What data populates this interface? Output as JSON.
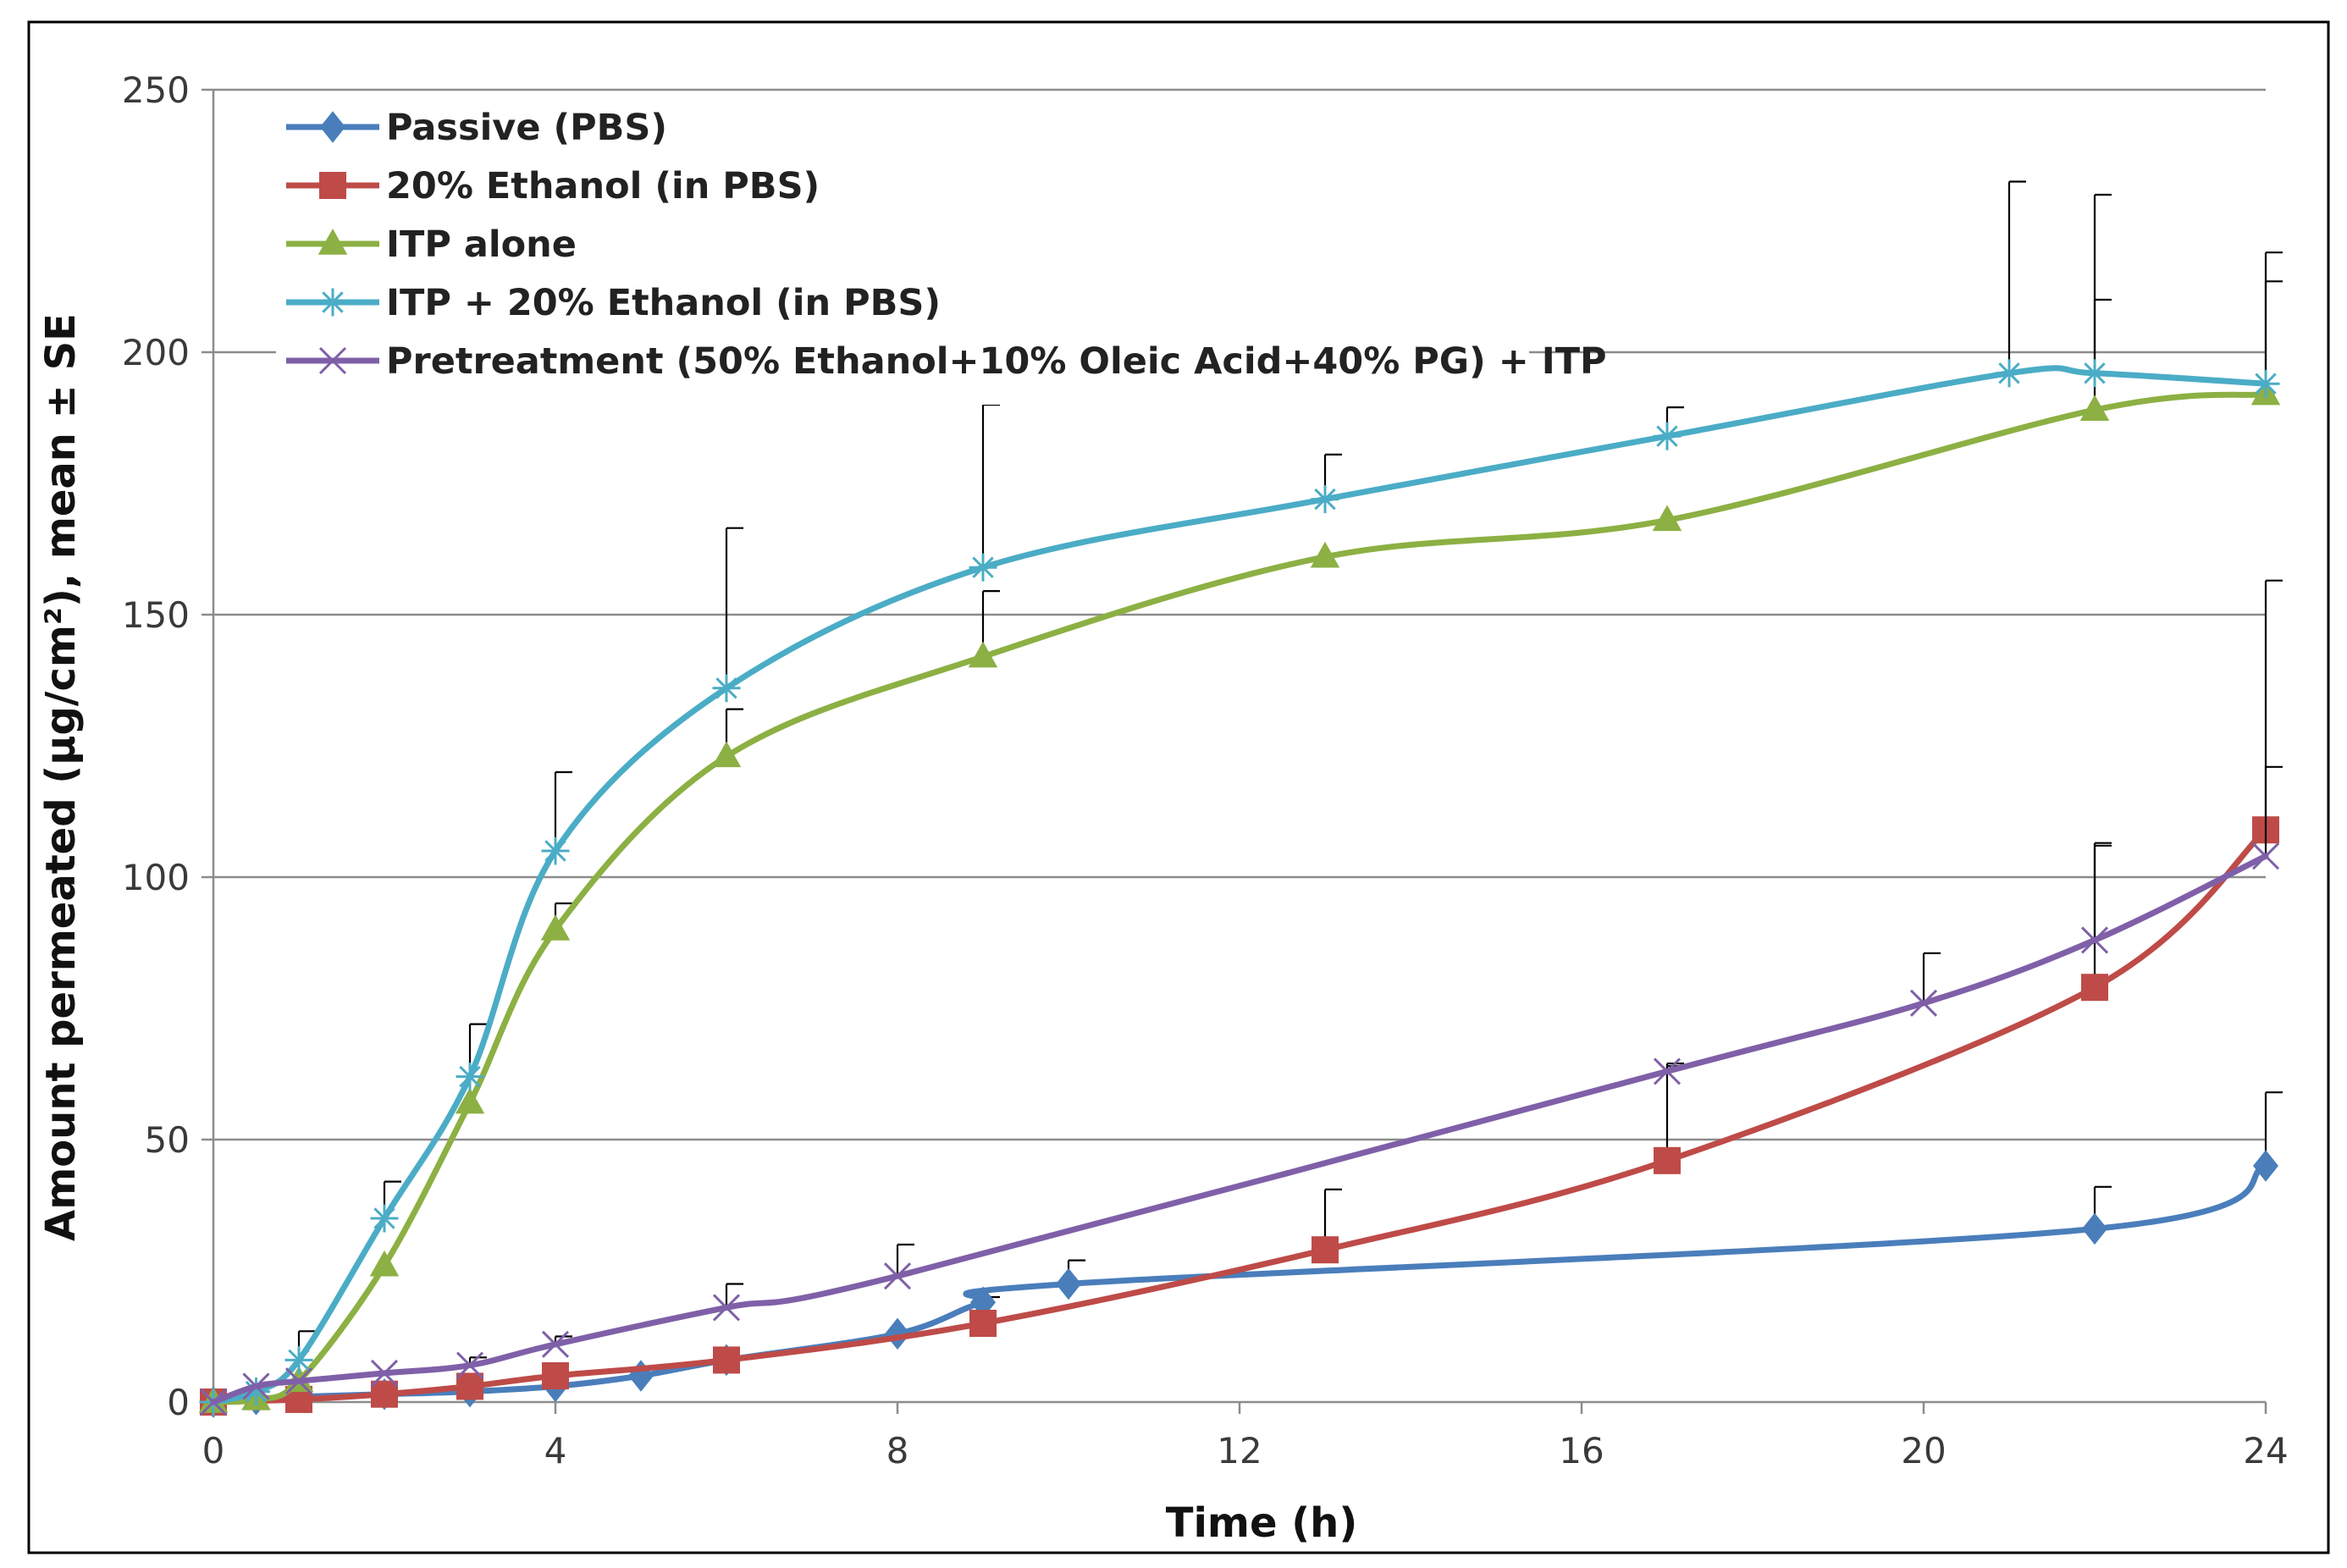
{
  "chart_data": {
    "type": "line",
    "xlabel": "Time (h)",
    "ylabel": "Amount permeated (µg/cm²), mean ± SE",
    "xlim": [
      0,
      24
    ],
    "ylim": [
      0,
      250
    ],
    "x_ticks": [
      0,
      4,
      8,
      12,
      16,
      20,
      24
    ],
    "y_ticks": [
      0,
      50,
      100,
      150,
      200,
      250
    ],
    "grid": "horizontal",
    "legend_position": "top-left",
    "series": [
      {
        "name": "Passive (PBS)",
        "color": "#4a7ebb",
        "marker": "diamond",
        "x": [
          0,
          0.5,
          1,
          2,
          3,
          4,
          5,
          6,
          8,
          9,
          10,
          22,
          24
        ],
        "y": [
          0,
          0.5,
          1,
          1.5,
          2,
          3,
          5,
          8,
          13,
          19,
          22.5,
          33,
          45
        ],
        "error_plus": [
          0,
          0,
          0,
          0,
          0,
          0,
          0,
          0,
          0,
          1,
          4.5,
          8,
          14
        ]
      },
      {
        "name": "20% Ethanol (in PBS)",
        "color": "#be4b48",
        "marker": "square",
        "x": [
          0,
          1,
          2,
          3,
          4,
          6,
          9,
          13,
          17,
          22,
          24
        ],
        "y": [
          0,
          0.5,
          1.5,
          3,
          5,
          8,
          15,
          29,
          46,
          79,
          109
        ],
        "error_plus": [
          0,
          0,
          0,
          0,
          0,
          0,
          0,
          11.5,
          18.5,
          27.5,
          47.5
        ]
      },
      {
        "name": "ITP alone",
        "color": "#8cb043",
        "marker": "triangle",
        "x": [
          0,
          0.5,
          1,
          2,
          3,
          4,
          6,
          9,
          13,
          17,
          22,
          24
        ],
        "y": [
          0,
          0.5,
          4,
          26,
          57,
          90,
          123,
          142,
          161,
          168,
          189,
          192
        ],
        "error_plus": [
          0,
          0,
          0,
          0,
          0,
          5,
          9,
          12.5,
          0,
          0,
          21,
          21.5
        ]
      },
      {
        "name": "ITP + 20% Ethanol (in PBS)",
        "color": "#4bacc6",
        "marker": "star",
        "x": [
          0,
          0.5,
          1,
          2,
          3,
          4,
          6,
          9,
          13,
          17,
          21,
          22,
          24
        ],
        "y": [
          0,
          2,
          8,
          35,
          62,
          105,
          136,
          159,
          172,
          184,
          196,
          196,
          194
        ],
        "error_plus": [
          0,
          0,
          5.5,
          7,
          10,
          15,
          30.5,
          31,
          8.5,
          5.5,
          36.5,
          34,
          25
        ]
      },
      {
        "name": "Pretreatment (50% Ethanol+10% Oleic Acid+40% PG) + ITP",
        "color": "#7f60a8",
        "marker": "x",
        "x": [
          0,
          0.5,
          1,
          2,
          3,
          4,
          6,
          8,
          17,
          20,
          22,
          24
        ],
        "y": [
          0,
          3,
          4,
          5.5,
          7,
          11,
          18,
          24,
          63,
          76,
          88,
          104
        ],
        "error_plus": [
          0,
          0,
          0,
          0,
          1.5,
          1.5,
          4.5,
          6,
          1,
          9.5,
          18,
          17
        ]
      }
    ]
  }
}
